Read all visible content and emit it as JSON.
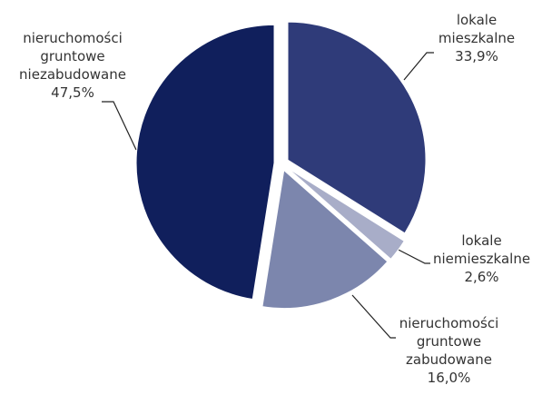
{
  "chart_data": {
    "type": "pie",
    "categories": [
      "lokale mieszkalne",
      "lokale niemieszkalne",
      "nieruchomości gruntowe zabudowane",
      "nieruchomości gruntowe niezabudowane"
    ],
    "values": [
      33.9,
      2.6,
      16.0,
      47.5
    ],
    "value_labels": [
      "33,9%",
      "2,6%",
      "16,0%",
      "47,5%"
    ],
    "colors": [
      "#2f3b79",
      "#a8adc8",
      "#7c86ad",
      "#101f5c"
    ]
  }
}
